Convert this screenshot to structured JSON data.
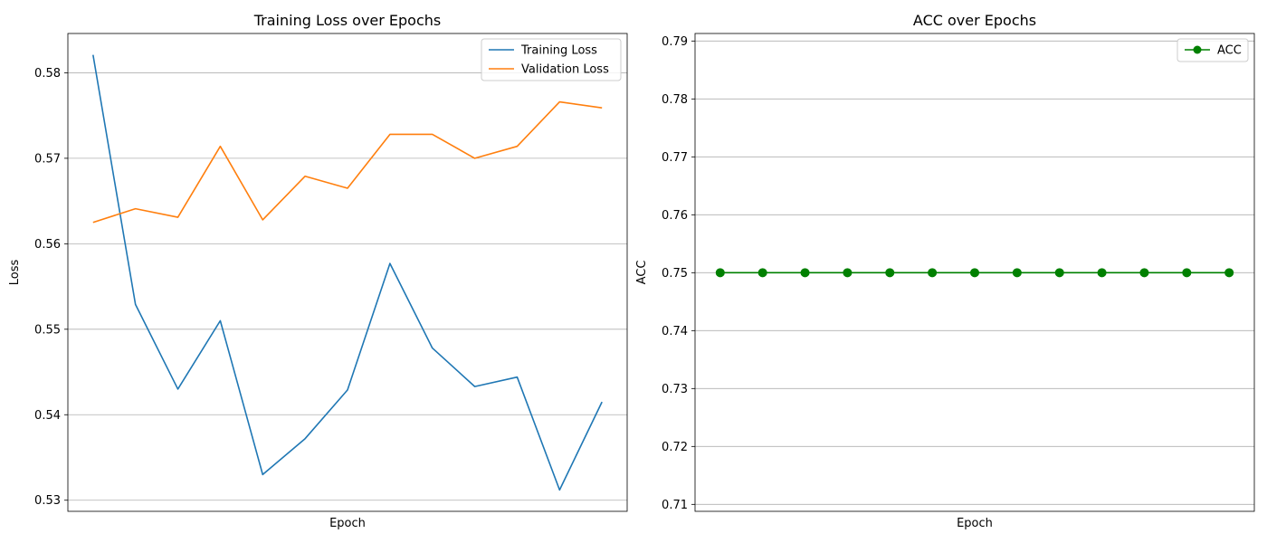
{
  "chart_data": [
    {
      "type": "line",
      "title": "Training Loss over Epochs",
      "xlabel": "Epoch",
      "ylabel": "Loss",
      "x": [
        1,
        2,
        3,
        4,
        5,
        6,
        7,
        8,
        9,
        10,
        11,
        12,
        13
      ],
      "xticks_visible": false,
      "ylim": [
        0.5287,
        0.5846
      ],
      "yticks": [
        "0.53",
        "0.54",
        "0.55",
        "0.56",
        "0.57",
        "0.58"
      ],
      "grid": "horizontal",
      "legend": "top-right",
      "series": [
        {
          "name": "Training Loss",
          "color": "#1f77b4",
          "marker": "none",
          "values": [
            0.5821,
            0.5529,
            0.543,
            0.551,
            0.533,
            0.5372,
            0.5429,
            0.5577,
            0.5478,
            0.5433,
            0.5444,
            0.5312,
            0.5415
          ]
        },
        {
          "name": "Validation Loss",
          "color": "#ff7f0e",
          "marker": "none",
          "values": [
            0.5625,
            0.5641,
            0.5631,
            0.5714,
            0.5628,
            0.5679,
            0.5665,
            0.5728,
            0.5728,
            0.57,
            0.5714,
            0.5766,
            0.5759
          ]
        }
      ]
    },
    {
      "type": "line",
      "title": "ACC over Epochs",
      "xlabel": "Epoch",
      "ylabel": "ACC",
      "x": [
        1,
        2,
        3,
        4,
        5,
        6,
        7,
        8,
        9,
        10,
        11,
        12,
        13
      ],
      "xticks_visible": false,
      "ylim": [
        0.7088,
        0.7913
      ],
      "yticks": [
        "0.71",
        "0.72",
        "0.73",
        "0.74",
        "0.75",
        "0.76",
        "0.77",
        "0.78",
        "0.79"
      ],
      "grid": "horizontal",
      "legend": "top-right",
      "series": [
        {
          "name": "ACC",
          "color": "#008000",
          "marker": "circle",
          "values": [
            0.75,
            0.75,
            0.75,
            0.75,
            0.75,
            0.75,
            0.75,
            0.75,
            0.75,
            0.75,
            0.75,
            0.75,
            0.75
          ]
        }
      ]
    }
  ]
}
